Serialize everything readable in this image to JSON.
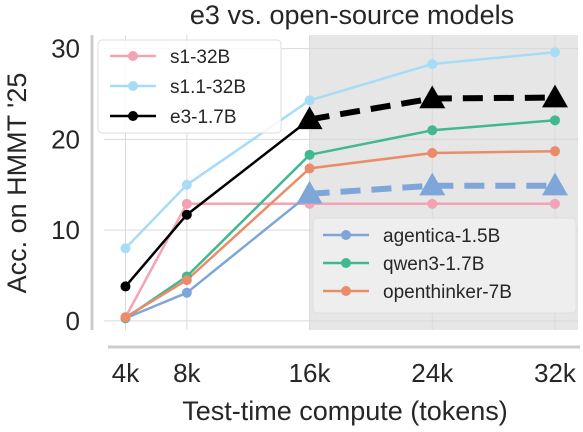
{
  "chart_data": {
    "type": "line",
    "title": "e3 vs. open-source models",
    "xlabel": "Test-time compute (tokens)",
    "ylabel": "Acc. on HMMT '25",
    "x_ticks": [
      {
        "value": 4,
        "label": "4k"
      },
      {
        "value": 8,
        "label": "8k"
      },
      {
        "value": 16,
        "label": "16k"
      },
      {
        "value": 24,
        "label": "24k"
      },
      {
        "value": 32,
        "label": "32k"
      }
    ],
    "y_ticks": [
      {
        "value": 0,
        "label": "0"
      },
      {
        "value": 10,
        "label": "10"
      },
      {
        "value": 20,
        "label": "20"
      },
      {
        "value": 30,
        "label": "30"
      }
    ],
    "xlim": [
      2.6,
      33.5
    ],
    "ylim": [
      -1,
      31.5
    ],
    "grid": true,
    "shaded_region": {
      "x_from": 16,
      "x_to": 33.5,
      "color": "#e6e6e6"
    },
    "series": [
      {
        "name": "s1-32B",
        "color": "#f4a3b4",
        "style": "solid",
        "marker": "circle",
        "x": [
          4,
          8,
          16,
          24,
          32
        ],
        "y": [
          0.4,
          12.9,
          12.9,
          12.9,
          12.9
        ]
      },
      {
        "name": "s1.1-32B",
        "color": "#a6dcf7",
        "style": "solid",
        "marker": "circle",
        "x": [
          4,
          8,
          16,
          24,
          32
        ],
        "y": [
          8.0,
          15.0,
          24.3,
          28.3,
          29.6
        ]
      },
      {
        "name": "e3-1.7B",
        "color": "#000000",
        "style": "solid",
        "marker": "circle",
        "x": [
          4,
          8,
          16
        ],
        "y": [
          3.8,
          11.7,
          22.2
        ]
      },
      {
        "name": "",
        "color": "#000000",
        "style": "dashed",
        "marker": "triangle",
        "x": [
          16,
          24,
          32
        ],
        "y": [
          22.2,
          24.5,
          24.6
        ]
      },
      {
        "name": "agentica-1.5B",
        "color": "#7ea6d8",
        "style": "solid",
        "marker": "circle",
        "x": [
          4,
          8,
          16
        ],
        "y": [
          0.3,
          3.1,
          14.0
        ]
      },
      {
        "name": "",
        "color": "#7ea6d8",
        "style": "dashed",
        "marker": "triangle",
        "x": [
          16,
          24,
          32
        ],
        "y": [
          14.0,
          14.9,
          14.9
        ]
      },
      {
        "name": "qwen3-1.7B",
        "color": "#41b98f",
        "style": "solid",
        "marker": "circle",
        "x": [
          4,
          8,
          16,
          24,
          32
        ],
        "y": [
          0.3,
          4.9,
          18.3,
          21.0,
          22.1
        ]
      },
      {
        "name": "openthinker-7B",
        "color": "#ea8c6a",
        "style": "solid",
        "marker": "circle",
        "x": [
          4,
          8,
          16,
          24,
          32
        ],
        "y": [
          0.4,
          4.5,
          16.8,
          18.5,
          18.7
        ]
      }
    ],
    "legends": [
      {
        "placement": "top-left",
        "entries": [
          "s1-32B",
          "s1.1-32B",
          "e3-1.7B"
        ]
      },
      {
        "placement": "lower-right",
        "entries": [
          "agentica-1.5B",
          "qwen3-1.7B",
          "openthinker-7B"
        ]
      }
    ]
  }
}
